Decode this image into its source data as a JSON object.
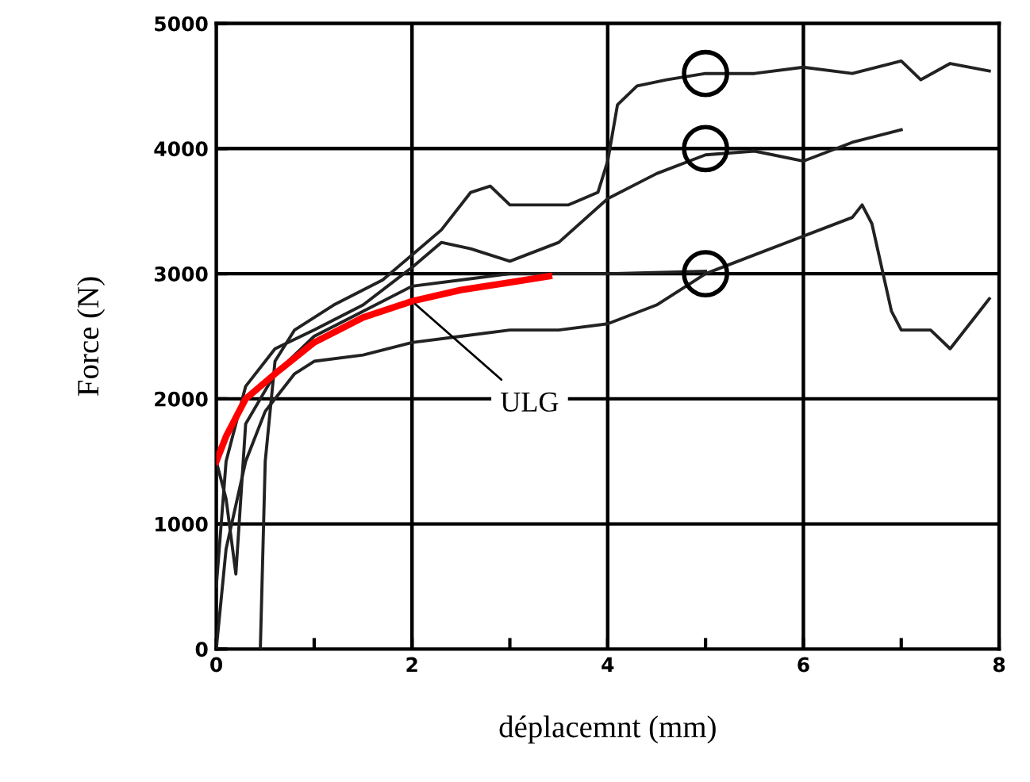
{
  "chart_data": {
    "type": "line",
    "xlabel": "déplacemnt (mm)",
    "ylabel": "Force (N)",
    "xlim": [
      0,
      8
    ],
    "ylim": [
      0,
      5000
    ],
    "xticks": [
      0,
      {
        "value": 1,
        "label": null
      },
      2,
      {
        "value": 3,
        "label": null
      },
      4,
      {
        "value": 5,
        "label": null
      },
      6,
      {
        "value": 7,
        "label": null
      },
      8
    ],
    "yticks": [
      0,
      1000,
      2000,
      3000,
      4000,
      5000
    ],
    "grid": true,
    "legend": false,
    "marker": "none",
    "line_style": "solid",
    "series": [
      {
        "color": "#222222",
        "x": [
          0.45,
          0.5,
          0.6,
          0.8,
          1.2,
          1.7,
          2.0,
          2.3,
          2.6,
          2.8,
          3.0,
          3.3,
          3.6,
          3.9,
          4.0,
          4.1,
          4.3,
          4.6,
          5.0,
          5.5,
          6.0,
          6.5,
          7.0,
          7.2,
          7.5,
          7.9
        ],
        "values": [
          0,
          1500,
          2300,
          2550,
          2750,
          2950,
          3150,
          3350,
          3650,
          3700,
          3550,
          3550,
          3550,
          3650,
          3900,
          4350,
          4500,
          4550,
          4600,
          4600,
          4650,
          4600,
          4700,
          4550,
          4680,
          4620
        ]
      },
      {
        "color": "#222222",
        "x": [
          0,
          0.1,
          0.3,
          0.6,
          1.0,
          1.5,
          2.0,
          2.3,
          2.6,
          3.0,
          3.5,
          4.0,
          4.5,
          5.0,
          5.5,
          6.0,
          6.5,
          7.0
        ],
        "values": [
          500,
          1500,
          2100,
          2400,
          2550,
          2750,
          3050,
          3250,
          3200,
          3100,
          3250,
          3600,
          3800,
          3950,
          3980,
          3900,
          4050,
          4150
        ]
      },
      {
        "color": "#222222",
        "x": [
          0,
          0.1,
          0.3,
          0.5,
          0.8,
          1.0,
          1.5,
          2.0,
          2.5,
          3.0,
          3.5,
          4.0,
          4.5,
          5.0,
          5.5,
          6.0,
          6.5,
          6.6,
          6.7,
          6.9,
          7.0,
          7.3,
          7.5,
          7.8,
          7.9
        ],
        "values": [
          0,
          800,
          1500,
          1900,
          2200,
          2300,
          2350,
          2450,
          2500,
          2550,
          2550,
          2600,
          2750,
          3000,
          3150,
          3300,
          3450,
          3550,
          3400,
          2700,
          2550,
          2550,
          2400,
          2700,
          2800
        ]
      },
      {
        "color": "#222222",
        "x": [
          0,
          0.1,
          0.2,
          0.3,
          0.6,
          1.0,
          1.5,
          2.0,
          2.5,
          3.0,
          3.5,
          4.0,
          5.0
        ],
        "values": [
          1500,
          1200,
          600,
          1800,
          2200,
          2500,
          2700,
          2900,
          2950,
          3000,
          3000,
          3000,
          3020
        ]
      },
      {
        "name": "ULG",
        "color": "#ff0000",
        "x": [
          0,
          0.1,
          0.3,
          0.6,
          1.0,
          1.5,
          2.0,
          2.5,
          3.0,
          3.4
        ],
        "values": [
          1500,
          1700,
          2000,
          2200,
          2450,
          2650,
          2780,
          2870,
          2930,
          2980
        ]
      },
      {
        "type": "scatter",
        "marker": "circle",
        "color": "#000000",
        "x": [
          5,
          5,
          5
        ],
        "values": [
          4600,
          4000,
          3000
        ]
      }
    ]
  }
}
